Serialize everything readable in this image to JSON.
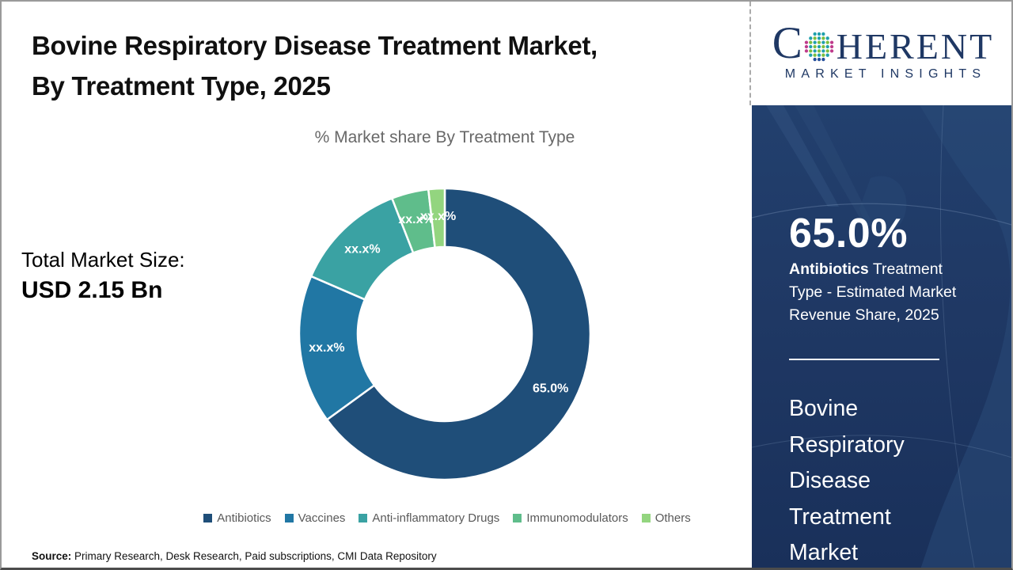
{
  "header": {
    "title_line1": "Bovine Respiratory Disease Treatment Market,",
    "title_line2": "By Treatment Type, 2025"
  },
  "brand": {
    "name_first_letter": "C",
    "name_rest": "HERENT",
    "tagline": "MARKET INSIGHTS"
  },
  "market_size": {
    "label": "Total Market Size:",
    "value": "USD 2.15 Bn"
  },
  "chart_data": {
    "type": "pie",
    "donut": true,
    "title": "% Market share By Treatment Type",
    "categories": [
      "Antibiotics",
      "Vaccines",
      "Anti-inflammatory Drugs",
      "Immunomodulators",
      "Others"
    ],
    "values": [
      65.0,
      16.5,
      12.6,
      4.1,
      1.8
    ],
    "slice_labels": [
      "65.0%",
      "xx.x%",
      "xx.x%",
      "xx.x%",
      "xx.x%"
    ],
    "colors": [
      "#1F4E79",
      "#2177A4",
      "#3AA2A3",
      "#5FBD8B",
      "#93D57F"
    ],
    "legend_position": "bottom",
    "start_angle_deg": 0
  },
  "side_panel": {
    "stat_value": "65.0%",
    "stat_desc_bold": "Antibiotics",
    "stat_desc_rest": " Treatment Type - Estimated Market Revenue Share, 2025",
    "market_name_lines": [
      "Bovine",
      "Respiratory",
      "Disease",
      "Treatment",
      "Market"
    ]
  },
  "source": {
    "label": "Source:",
    "text": " Primary Research, Desk Research, Paid subscriptions, CMI Data Repository"
  },
  "colors": {
    "panel_navy": "#1F3864",
    "brand_navy": "#1F3864",
    "title_text": "#101010",
    "subtitle_gray": "#686868",
    "legend_text": "#595959"
  }
}
